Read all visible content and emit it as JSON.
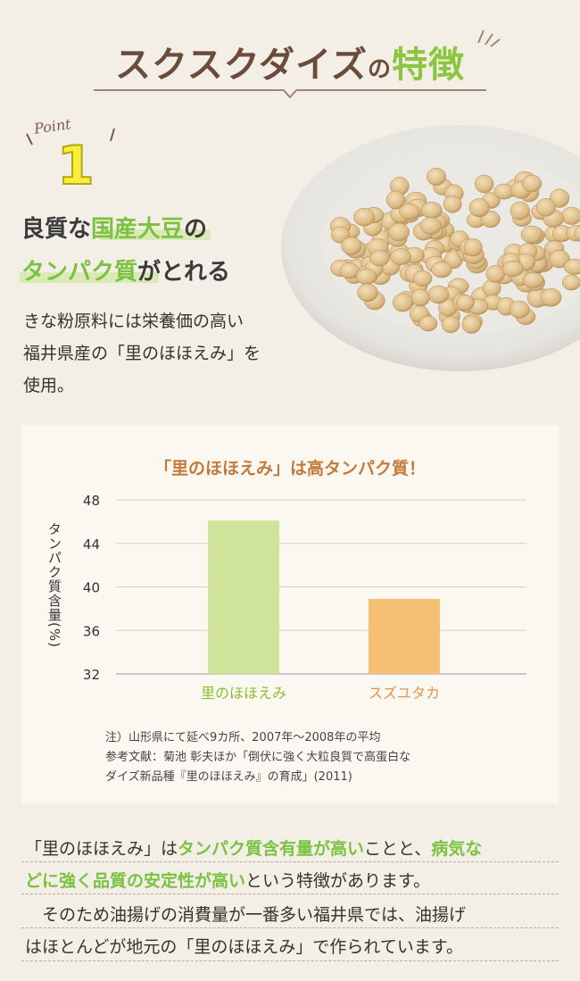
{
  "header": {
    "title_main": "スクスクダイズ",
    "title_particle": "の",
    "title_accent": "特徴"
  },
  "point": {
    "word": "Point",
    "number": "1",
    "headline_line1_pre": "良質な",
    "headline_line1_green": "国産大豆",
    "headline_line1_post": "の",
    "headline_line2_green": "タンパク質",
    "headline_line2_post": "がとれる",
    "body_lines": [
      "きな粉原料には栄養価の高い",
      "福井県産の「里のほほえみ」を",
      "使用。"
    ]
  },
  "chart_data": {
    "type": "bar",
    "title": "「里のほほえみ」は高タンパク質！",
    "ylabel": "タンパク質含量(%)",
    "xlabel": "",
    "categories": [
      "里のほほえみ",
      "スズユタカ"
    ],
    "values": [
      46.1,
      38.9
    ],
    "ylim": [
      32,
      48
    ],
    "yticks": [
      48,
      44,
      40,
      36,
      32
    ],
    "colors": [
      "#cfe39a",
      "#f6c074"
    ],
    "label_colors": [
      "#8cbf2e",
      "#e2954a"
    ],
    "grid": true
  },
  "notes": [
    "注）山形県にて延べ9カ所、2007年〜2008年の平均",
    "参考文献：菊池 彰夫ほか「倒伏に強く大粒良質で高蛋白な",
    "ダイズ新品種『里のほほえみ』の育成」(2011)"
  ],
  "paragraph": {
    "l1_a": "「里のほほえみ」は",
    "l1_g": "タンパク質含有量が高い",
    "l1_b": "ことと、",
    "l1_g2": "病気な",
    "l2_g": "どに強く品質の安定性が高い",
    "l2_b": "という特徴があります。",
    "l3": "　そのため油揚げの消費量が一番多い福井県では、油揚げ",
    "l4": "はほとんどが地元の「里のほほえみ」で作られています。"
  }
}
